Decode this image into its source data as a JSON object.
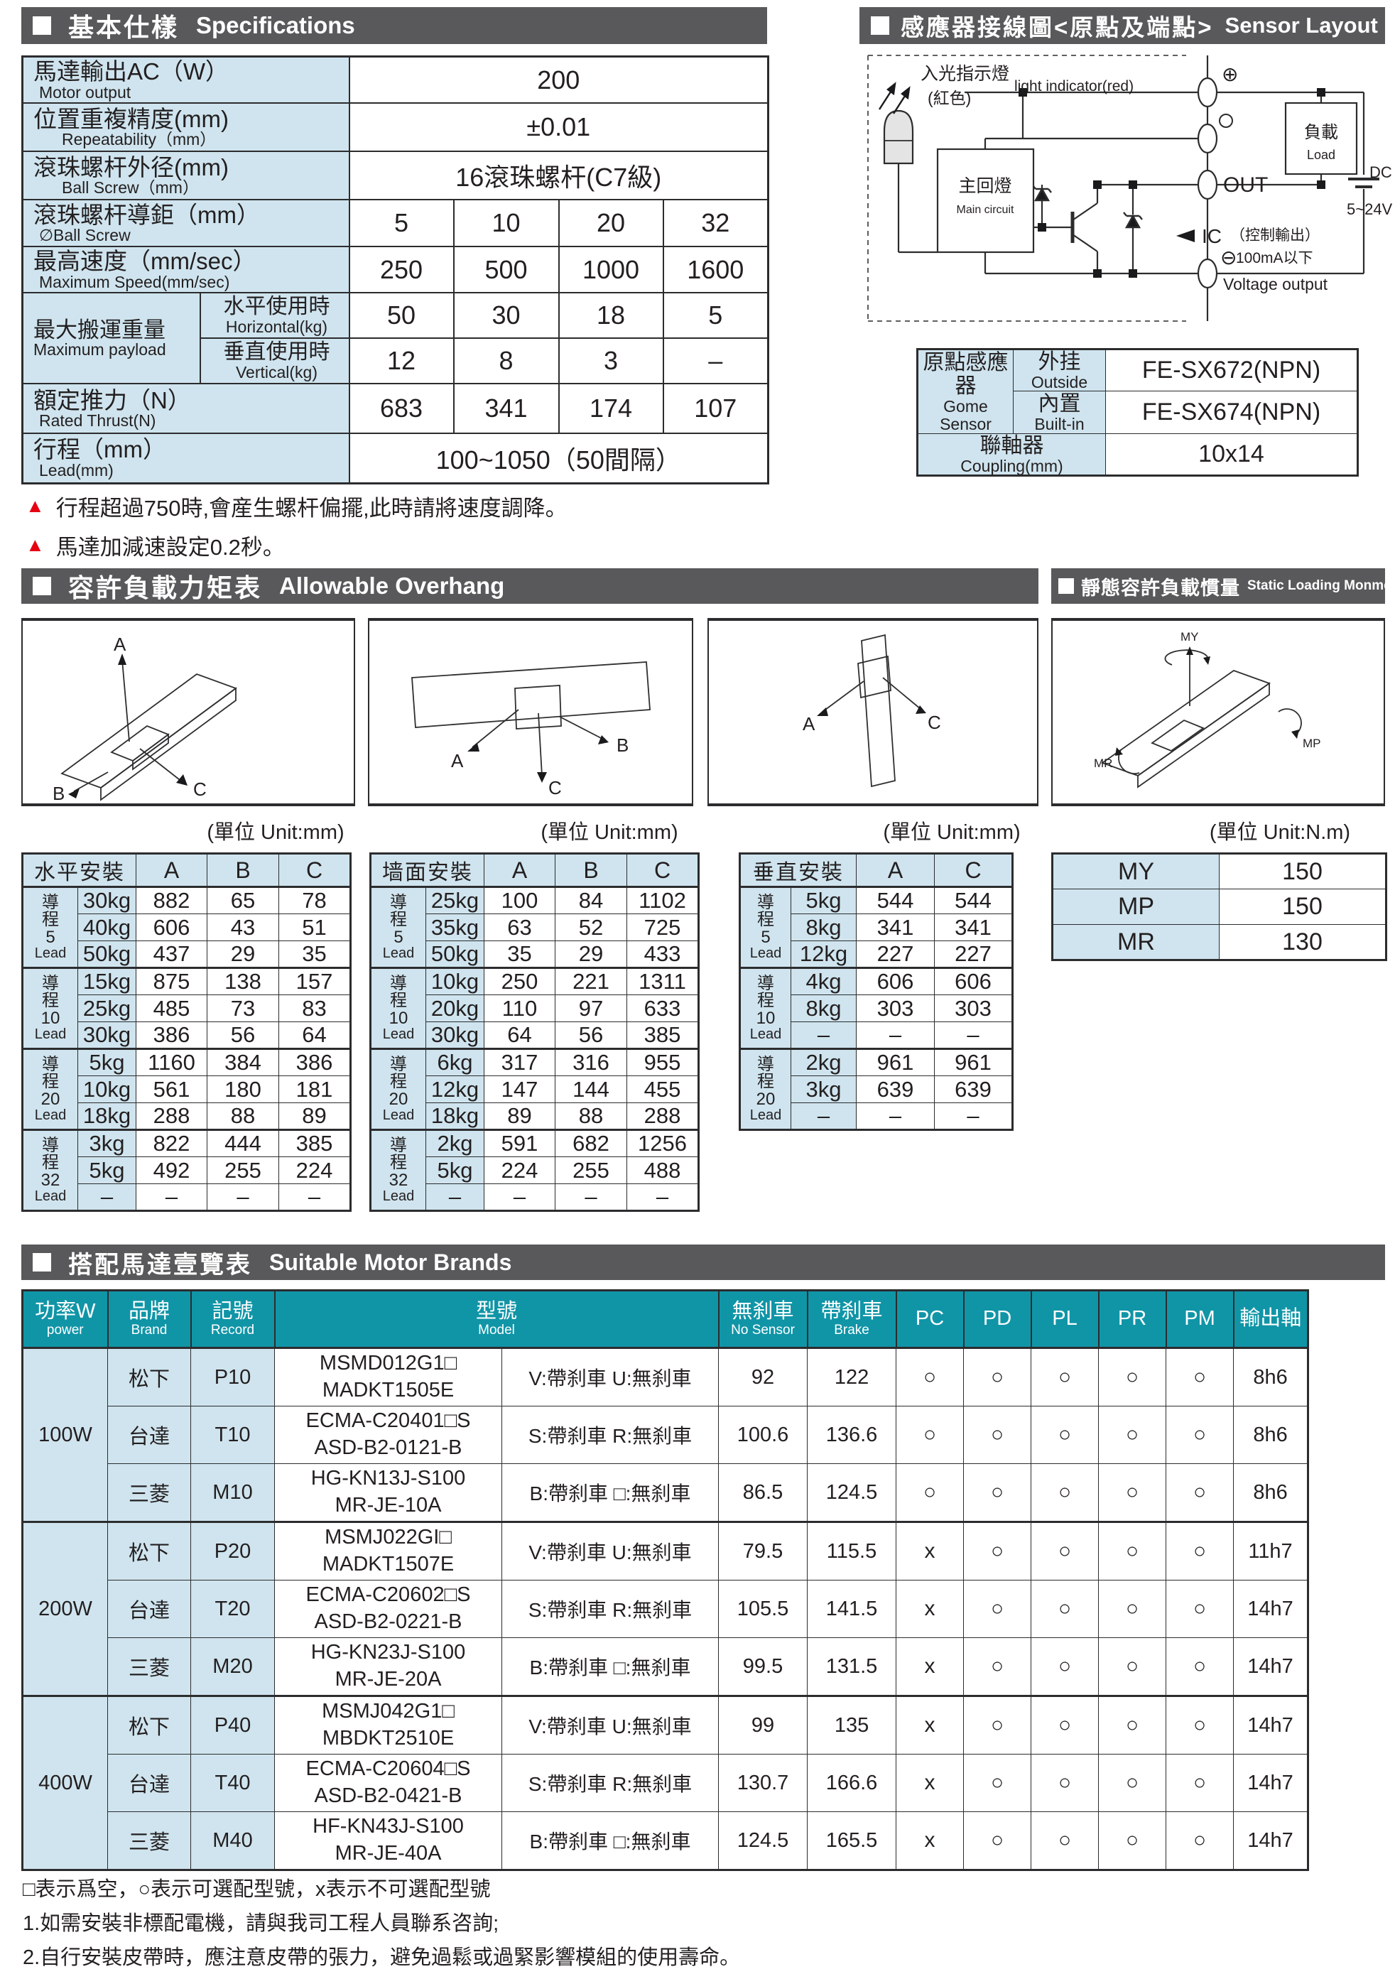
{
  "spec_section": {
    "title_zh": "基本仕樣",
    "title_en": "Specifications",
    "table": {
      "rows": [
        {
          "zh": "馬達輸出AC（W）",
          "en": "Motor output",
          "value": "200"
        },
        {
          "zh": "位置重複精度(mm)",
          "en": "Repeatability（mm）",
          "value": "±0.01"
        },
        {
          "zh": "滾珠螺杆外径(mm)",
          "en": "Ball Screw（mm）",
          "value": "16滾珠螺杆(C7級)"
        },
        {
          "zh": "滾珠螺杆導鉅（mm）",
          "en": "∅Ball Screw",
          "values": [
            "5",
            "10",
            "20",
            "32"
          ]
        },
        {
          "zh": "最高速度（mm/sec）",
          "en": "Maximum Speed(mm/sec)",
          "values": [
            "250",
            "500",
            "1000",
            "1600"
          ]
        },
        {
          "zh": "最大搬運重量",
          "en": "Maximum payload",
          "subrows": [
            {
              "zh": "水平使用時",
              "en": "Horizontal(kg)",
              "values": [
                "50",
                "30",
                "18",
                "5"
              ]
            },
            {
              "zh": "垂直使用時",
              "en": "Vertical(kg)",
              "values": [
                "12",
                "8",
                "3",
                "–"
              ]
            }
          ]
        },
        {
          "zh": "額定推力（N）",
          "en": "Rated Thrust(N)",
          "values": [
            "683",
            "341",
            "174",
            "107"
          ]
        },
        {
          "zh": "行程（mm）",
          "en": "Lead(mm)",
          "value": "100~1050（50間隔）"
        }
      ]
    },
    "warnings": [
      "行程超過750時,會産生螺杆偏擺,此時請將速度調降。",
      "馬達加減速設定0.2秒。"
    ]
  },
  "sensor_section": {
    "title_zh": "感應器接線圖<原點及端點>",
    "title_en": "Sensor Layout",
    "diagram": {
      "light_zh": "入光指示燈",
      "light_color": "(紅色)",
      "light_en": "light indicator(red)",
      "main_zh": "主回燈",
      "main_en": "Main circuit",
      "out": "OUT",
      "load_zh": "負載",
      "load_en": "Load",
      "dc": "DC",
      "dc_range": "5~24V",
      "ic": "IC",
      "ic_ctrl": "（控制輸出）",
      "ic_current": "100mA以下",
      "ic_en": "Voltage output",
      "plus": "⊕",
      "minus": "⊖"
    },
    "table": {
      "sensor_zh": "原點感應器",
      "sensor_en": "Gome Sensor",
      "outside_zh": "外挂",
      "outside_en": "Outside",
      "outside_value": "FE-SX672(NPN)",
      "builtin_zh": "內置",
      "builtin_en": "Built-in",
      "builtin_value": "FE-SX674(NPN)",
      "coupling_zh": "聯軸器",
      "coupling_en": "Coupling(mm)",
      "coupling_value": "10x14"
    }
  },
  "overhang_section": {
    "title_zh": "容許負載力矩表",
    "title_en": "Allowable Overhang",
    "static_title_zh": "靜態容許負載慣量",
    "static_title_en": "Static Loading Monment",
    "unit_mm": "(單位 Unit:mm)",
    "unit_nm": "(單位 Unit:N.m)",
    "lead_zh_chars": [
      "導",
      "程"
    ],
    "lead_en": "Lead",
    "diagram_labels": {
      "box1": [
        "A",
        "B",
        "C"
      ],
      "box2": [
        "A",
        "B",
        "C"
      ],
      "box3": [
        "A",
        "C"
      ],
      "box4": [
        "MY",
        "MP",
        "MR"
      ]
    },
    "tables": [
      {
        "title": "水平安裝",
        "columns": [
          "A",
          "B",
          "C"
        ],
        "groups": [
          {
            "lead": "5",
            "rows": [
              [
                "30kg",
                "882",
                "65",
                "78"
              ],
              [
                "40kg",
                "606",
                "43",
                "51"
              ],
              [
                "50kg",
                "437",
                "29",
                "35"
              ]
            ]
          },
          {
            "lead": "10",
            "rows": [
              [
                "15kg",
                "875",
                "138",
                "157"
              ],
              [
                "25kg",
                "485",
                "73",
                "83"
              ],
              [
                "30kg",
                "386",
                "56",
                "64"
              ]
            ]
          },
          {
            "lead": "20",
            "rows": [
              [
                "5kg",
                "1160",
                "384",
                "386"
              ],
              [
                "10kg",
                "561",
                "180",
                "181"
              ],
              [
                "18kg",
                "288",
                "88",
                "89"
              ]
            ]
          },
          {
            "lead": "32",
            "rows": [
              [
                "3kg",
                "822",
                "444",
                "385"
              ],
              [
                "5kg",
                "492",
                "255",
                "224"
              ],
              [
                "–",
                "–",
                "–",
                "–"
              ]
            ]
          }
        ]
      },
      {
        "title": "墙面安裝",
        "columns": [
          "A",
          "B",
          "C"
        ],
        "groups": [
          {
            "lead": "5",
            "rows": [
              [
                "25kg",
                "100",
                "84",
                "1102"
              ],
              [
                "35kg",
                "63",
                "52",
                "725"
              ],
              [
                "50kg",
                "35",
                "29",
                "433"
              ]
            ]
          },
          {
            "lead": "10",
            "rows": [
              [
                "10kg",
                "250",
                "221",
                "1311"
              ],
              [
                "20kg",
                "110",
                "97",
                "633"
              ],
              [
                "30kg",
                "64",
                "56",
                "385"
              ]
            ]
          },
          {
            "lead": "20",
            "rows": [
              [
                "6kg",
                "317",
                "316",
                "955"
              ],
              [
                "12kg",
                "147",
                "144",
                "455"
              ],
              [
                "18kg",
                "89",
                "88",
                "288"
              ]
            ]
          },
          {
            "lead": "32",
            "rows": [
              [
                "2kg",
                "591",
                "682",
                "1256"
              ],
              [
                "5kg",
                "224",
                "255",
                "488"
              ],
              [
                "–",
                "–",
                "–",
                "–"
              ]
            ]
          }
        ]
      },
      {
        "title": "垂直安裝",
        "columns": [
          "A",
          "C"
        ],
        "groups": [
          {
            "lead": "5",
            "rows": [
              [
                "5kg",
                "544",
                "544"
              ],
              [
                "8kg",
                "341",
                "341"
              ],
              [
                "12kg",
                "227",
                "227"
              ]
            ]
          },
          {
            "lead": "10",
            "rows": [
              [
                "4kg",
                "606",
                "606"
              ],
              [
                "8kg",
                "303",
                "303"
              ],
              [
                "–",
                "–",
                "–"
              ]
            ]
          },
          {
            "lead": "20",
            "rows": [
              [
                "2kg",
                "961",
                "961"
              ],
              [
                "3kg",
                "639",
                "639"
              ],
              [
                "–",
                "–",
                "–"
              ]
            ]
          }
        ]
      }
    ],
    "static_table": {
      "rows": [
        [
          "MY",
          "150"
        ],
        [
          "MP",
          "150"
        ],
        [
          "MR",
          "130"
        ]
      ]
    }
  },
  "motor_section": {
    "title_zh": "搭配馬達壹覽表",
    "title_en": "Suitable Motor Brands",
    "headers": {
      "power_zh": "功率W",
      "power_en": "power",
      "brand_zh": "品牌",
      "brand_en": "Brand",
      "record_zh": "記號",
      "record_en": "Record",
      "model_zh": "型號",
      "model_en": "Model",
      "nosensor_zh": "無刹車",
      "nosensor_en": "No Sensor",
      "brake_zh": "帶刹車",
      "brake_en": "Brake",
      "pc": "PC",
      "pd": "PD",
      "pl": "PL",
      "pr": "PR",
      "pm": "PM",
      "shaft_zh": "輸出軸"
    },
    "groups": [
      {
        "power": "100W",
        "rows": [
          {
            "brand": "松下",
            "record": "P10",
            "model": [
              "MSMD012G1□",
              "MADKT1505E"
            ],
            "brake_code": "V:帶刹車 U:無刹車",
            "no_sensor": "92",
            "brake": "122",
            "marks": [
              "○",
              "○",
              "○",
              "○",
              "○"
            ],
            "shaft": "8h6"
          },
          {
            "brand": "台達",
            "record": "T10",
            "model": [
              "ECMA-C20401□S",
              "ASD-B2-0121-B"
            ],
            "brake_code": "S:帶刹車 R:無刹車",
            "no_sensor": "100.6",
            "brake": "136.6",
            "marks": [
              "○",
              "○",
              "○",
              "○",
              "○"
            ],
            "shaft": "8h6"
          },
          {
            "brand": "三菱",
            "record": "M10",
            "model": [
              "HG-KN13J-S100",
              "MR-JE-10A"
            ],
            "brake_code": "B:帶刹車 □:無刹車",
            "no_sensor": "86.5",
            "brake": "124.5",
            "marks": [
              "○",
              "○",
              "○",
              "○",
              "○"
            ],
            "shaft": "8h6"
          }
        ]
      },
      {
        "power": "200W",
        "rows": [
          {
            "brand": "松下",
            "record": "P20",
            "model": [
              "MSMJ022GI□",
              "MADKT1507E"
            ],
            "brake_code": "V:帶刹車 U:無刹車",
            "no_sensor": "79.5",
            "brake": "115.5",
            "marks": [
              "x",
              "○",
              "○",
              "○",
              "○"
            ],
            "shaft": "11h7"
          },
          {
            "brand": "台達",
            "record": "T20",
            "model": [
              "ECMA-C20602□S",
              "ASD-B2-0221-B"
            ],
            "brake_code": "S:帶刹車 R:無刹車",
            "no_sensor": "105.5",
            "brake": "141.5",
            "marks": [
              "x",
              "○",
              "○",
              "○",
              "○"
            ],
            "shaft": "14h7"
          },
          {
            "brand": "三菱",
            "record": "M20",
            "model": [
              "HG-KN23J-S100",
              "MR-JE-20A"
            ],
            "brake_code": "B:帶刹車 □:無刹車",
            "no_sensor": "99.5",
            "brake": "131.5",
            "marks": [
              "x",
              "○",
              "○",
              "○",
              "○"
            ],
            "shaft": "14h7"
          }
        ]
      },
      {
        "power": "400W",
        "rows": [
          {
            "brand": "松下",
            "record": "P40",
            "model": [
              "MSMJ042G1□",
              "MBDKT2510E"
            ],
            "brake_code": "V:帶刹車 U:無刹車",
            "no_sensor": "99",
            "brake": "135",
            "marks": [
              "x",
              "○",
              "○",
              "○",
              "○"
            ],
            "shaft": "14h7"
          },
          {
            "brand": "台達",
            "record": "T40",
            "model": [
              "ECMA-C20604□S",
              "ASD-B2-0421-B"
            ],
            "brake_code": "S:帶刹車 R:無刹車",
            "no_sensor": "130.7",
            "brake": "166.6",
            "marks": [
              "x",
              "○",
              "○",
              "○",
              "○"
            ],
            "shaft": "14h7"
          },
          {
            "brand": "三菱",
            "record": "M40",
            "model": [
              "HF-KN43J-S100",
              "MR-JE-40A"
            ],
            "brake_code": "B:帶刹車 □:無刹車",
            "no_sensor": "124.5",
            "brake": "165.5",
            "marks": [
              "x",
              "○",
              "○",
              "○",
              "○"
            ],
            "shaft": "14h7"
          }
        ]
      }
    ],
    "notes": [
      "□表示爲空，○表示可選配型號，x表示不可選配型號",
      "1.如需安裝非標配電機，請與我司工程人員聯系咨詢;",
      "2.自行安裝皮帶時，應注意皮帶的張力，避免過鬆或過緊影響模組的使用壽命。"
    ]
  }
}
